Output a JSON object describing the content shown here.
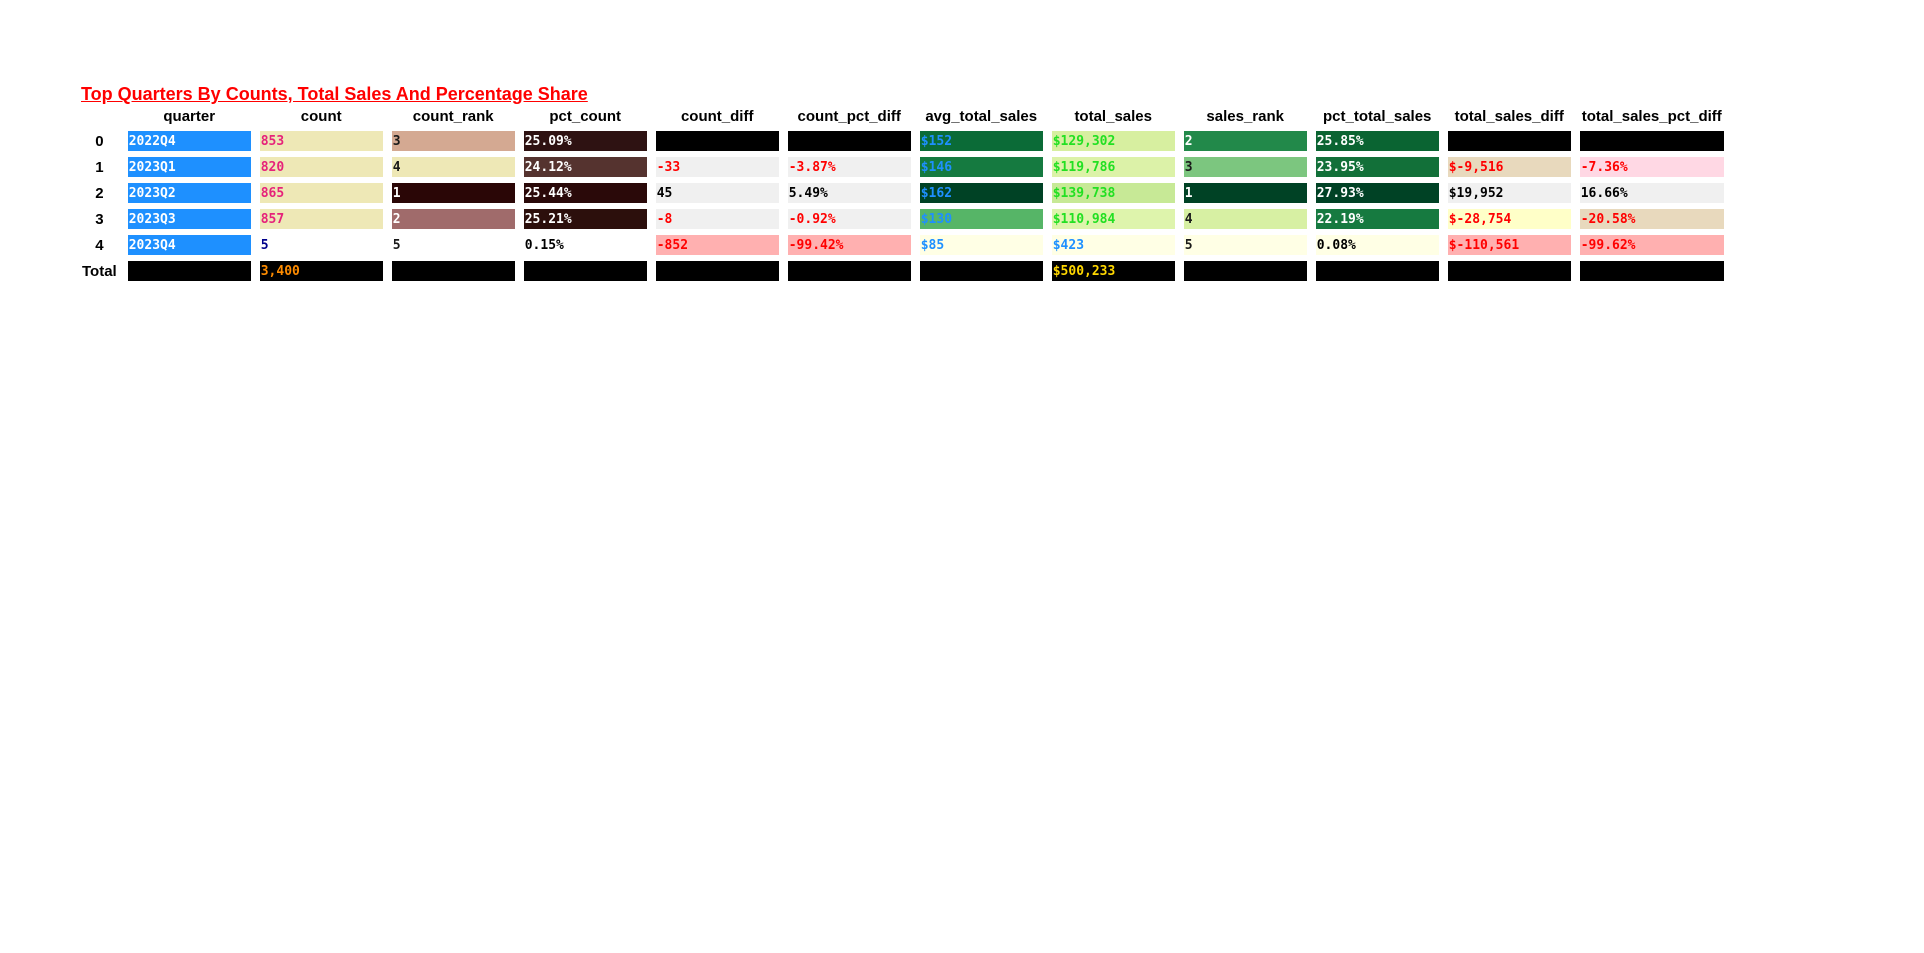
{
  "table": {
    "title": "Top Quarters By Counts, Total Sales And Percentage Share",
    "columns": [
      "quarter",
      "count",
      "count_rank",
      "pct_count",
      "count_diff",
      "count_pct_diff",
      "avg_total_sales",
      "total_sales",
      "sales_rank",
      "pct_total_sales",
      "total_sales_diff",
      "total_sales_pct_diff"
    ],
    "rows": [
      {
        "index": "0",
        "cells": [
          {
            "text": "2022Q4",
            "bg": "#1e90ff",
            "fg": "#ffffff"
          },
          {
            "text": "853",
            "bg": "#eee8b6",
            "fg": "#e6237a"
          },
          {
            "text": "3",
            "bg": "#d4a992",
            "fg": "#1a1a1a"
          },
          {
            "text": "25.09%",
            "bg": "#2e1212",
            "fg": "#ffffff"
          },
          {
            "text": "",
            "bg": "#000000",
            "fg": "#ffffff"
          },
          {
            "text": "",
            "bg": "#000000",
            "fg": "#ffffff"
          },
          {
            "text": "$152",
            "bg": "#0b6b37",
            "fg": "#1e90ff"
          },
          {
            "text": "$129,302",
            "bg": "#d7efa0",
            "fg": "#22e022"
          },
          {
            "text": "2",
            "bg": "#22894a",
            "fg": "#ffffff"
          },
          {
            "text": "25.85%",
            "bg": "#0a6432",
            "fg": "#ffffff"
          },
          {
            "text": "",
            "bg": "#000000",
            "fg": "#ffffff"
          },
          {
            "text": "",
            "bg": "#000000",
            "fg": "#ffffff"
          }
        ]
      },
      {
        "index": "1",
        "cells": [
          {
            "text": "2023Q1",
            "bg": "#1e90ff",
            "fg": "#ffffff"
          },
          {
            "text": "820",
            "bg": "#eee8b6",
            "fg": "#e6237a"
          },
          {
            "text": "4",
            "bg": "#eee8b6",
            "fg": "#1a1a1a"
          },
          {
            "text": "24.12%",
            "bg": "#55332f",
            "fg": "#ffffff"
          },
          {
            "text": "-33",
            "bg": "#f0f0f0",
            "fg": "#ff0000"
          },
          {
            "text": "-3.87%",
            "bg": "#f0f0f0",
            "fg": "#ff0000"
          },
          {
            "text": "$146",
            "bg": "#157a40",
            "fg": "#1e90ff"
          },
          {
            "text": "$119,786",
            "bg": "#dcf2a8",
            "fg": "#22e022"
          },
          {
            "text": "3",
            "bg": "#7cc67f",
            "fg": "#1a1a1a"
          },
          {
            "text": "23.95%",
            "bg": "#127039",
            "fg": "#ffffff"
          },
          {
            "text": "$-9,516",
            "bg": "#e8d9bd",
            "fg": "#ff0000"
          },
          {
            "text": "-7.36%",
            "bg": "#ffd8e4",
            "fg": "#ff0000"
          }
        ]
      },
      {
        "index": "2",
        "cells": [
          {
            "text": "2023Q2",
            "bg": "#1e90ff",
            "fg": "#ffffff"
          },
          {
            "text": "865",
            "bg": "#eee8b6",
            "fg": "#e6237a"
          },
          {
            "text": "1",
            "bg": "#2a0606",
            "fg": "#ffffff"
          },
          {
            "text": "25.44%",
            "bg": "#2a0909",
            "fg": "#ffffff"
          },
          {
            "text": "45",
            "bg": "#f0f0f0",
            "fg": "#000000"
          },
          {
            "text": "5.49%",
            "bg": "#f0f0f0",
            "fg": "#000000"
          },
          {
            "text": "$162",
            "bg": "#004225",
            "fg": "#1e90ff"
          },
          {
            "text": "$139,738",
            "bg": "#c7e996",
            "fg": "#22e022"
          },
          {
            "text": "1",
            "bg": "#004225",
            "fg": "#ffffff"
          },
          {
            "text": "27.93%",
            "bg": "#004225",
            "fg": "#ffffff"
          },
          {
            "text": "$19,952",
            "bg": "#f0f0f0",
            "fg": "#000000"
          },
          {
            "text": "16.66%",
            "bg": "#f0f0f0",
            "fg": "#000000"
          }
        ]
      },
      {
        "index": "3",
        "cells": [
          {
            "text": "2023Q3",
            "bg": "#1e90ff",
            "fg": "#ffffff"
          },
          {
            "text": "857",
            "bg": "#eee8b6",
            "fg": "#e6237a"
          },
          {
            "text": "2",
            "bg": "#a06b6b",
            "fg": "#ffffff"
          },
          {
            "text": "25.21%",
            "bg": "#2c0f0c",
            "fg": "#ffffff"
          },
          {
            "text": "-8",
            "bg": "#f0f0f0",
            "fg": "#ff0000"
          },
          {
            "text": "-0.92%",
            "bg": "#f0f0f0",
            "fg": "#ff0000"
          },
          {
            "text": "$130",
            "bg": "#56b567",
            "fg": "#1e90ff"
          },
          {
            "text": "$110,984",
            "bg": "#def4ac",
            "fg": "#22e022"
          },
          {
            "text": "4",
            "bg": "#d7f0a3",
            "fg": "#1a1a1a"
          },
          {
            "text": "22.19%",
            "bg": "#167a40",
            "fg": "#ffffff"
          },
          {
            "text": "$-28,754",
            "bg": "#ffffc8",
            "fg": "#ff0000"
          },
          {
            "text": "-20.58%",
            "bg": "#e8d9bd",
            "fg": "#ff0000"
          }
        ]
      },
      {
        "index": "4",
        "cells": [
          {
            "text": "2023Q4",
            "bg": "#1e90ff",
            "fg": "#ffffff"
          },
          {
            "text": "5",
            "bg": "#ffffff",
            "fg": "#00008b"
          },
          {
            "text": "5",
            "bg": "#ffffff",
            "fg": "#1a1a1a"
          },
          {
            "text": "0.15%",
            "bg": "#ffffff",
            "fg": "#000000"
          },
          {
            "text": "-852",
            "bg": "#ffb0b0",
            "fg": "#ff0000"
          },
          {
            "text": "-99.42%",
            "bg": "#ffb0b0",
            "fg": "#ff0000"
          },
          {
            "text": "$85",
            "bg": "#ffffe5",
            "fg": "#1e90ff"
          },
          {
            "text": "$423",
            "bg": "#ffffe5",
            "fg": "#1e90ff"
          },
          {
            "text": "5",
            "bg": "#ffffe5",
            "fg": "#1a1a1a"
          },
          {
            "text": "0.08%",
            "bg": "#ffffe5",
            "fg": "#000000"
          },
          {
            "text": "$-110,561",
            "bg": "#ffb0b0",
            "fg": "#ff0000"
          },
          {
            "text": "-99.62%",
            "bg": "#ffb0b0",
            "fg": "#ff0000"
          }
        ]
      },
      {
        "index": "Total",
        "cells": [
          {
            "text": "",
            "bg": "#000000",
            "fg": "#ffffff"
          },
          {
            "text": "3,400",
            "bg": "#000000",
            "fg": "#ff8c00"
          },
          {
            "text": "",
            "bg": "#000000",
            "fg": "#ffffff"
          },
          {
            "text": "",
            "bg": "#000000",
            "fg": "#ffffff"
          },
          {
            "text": "",
            "bg": "#000000",
            "fg": "#ffffff"
          },
          {
            "text": "",
            "bg": "#000000",
            "fg": "#ffffff"
          },
          {
            "text": "",
            "bg": "#000000",
            "fg": "#ffffff"
          },
          {
            "text": "$500,233",
            "bg": "#000000",
            "fg": "#ffd700"
          },
          {
            "text": "",
            "bg": "#000000",
            "fg": "#ffffff"
          },
          {
            "text": "",
            "bg": "#000000",
            "fg": "#ffffff"
          },
          {
            "text": "",
            "bg": "#000000",
            "fg": "#ffffff"
          },
          {
            "text": "",
            "bg": "#000000",
            "fg": "#ffffff"
          }
        ]
      }
    ]
  }
}
